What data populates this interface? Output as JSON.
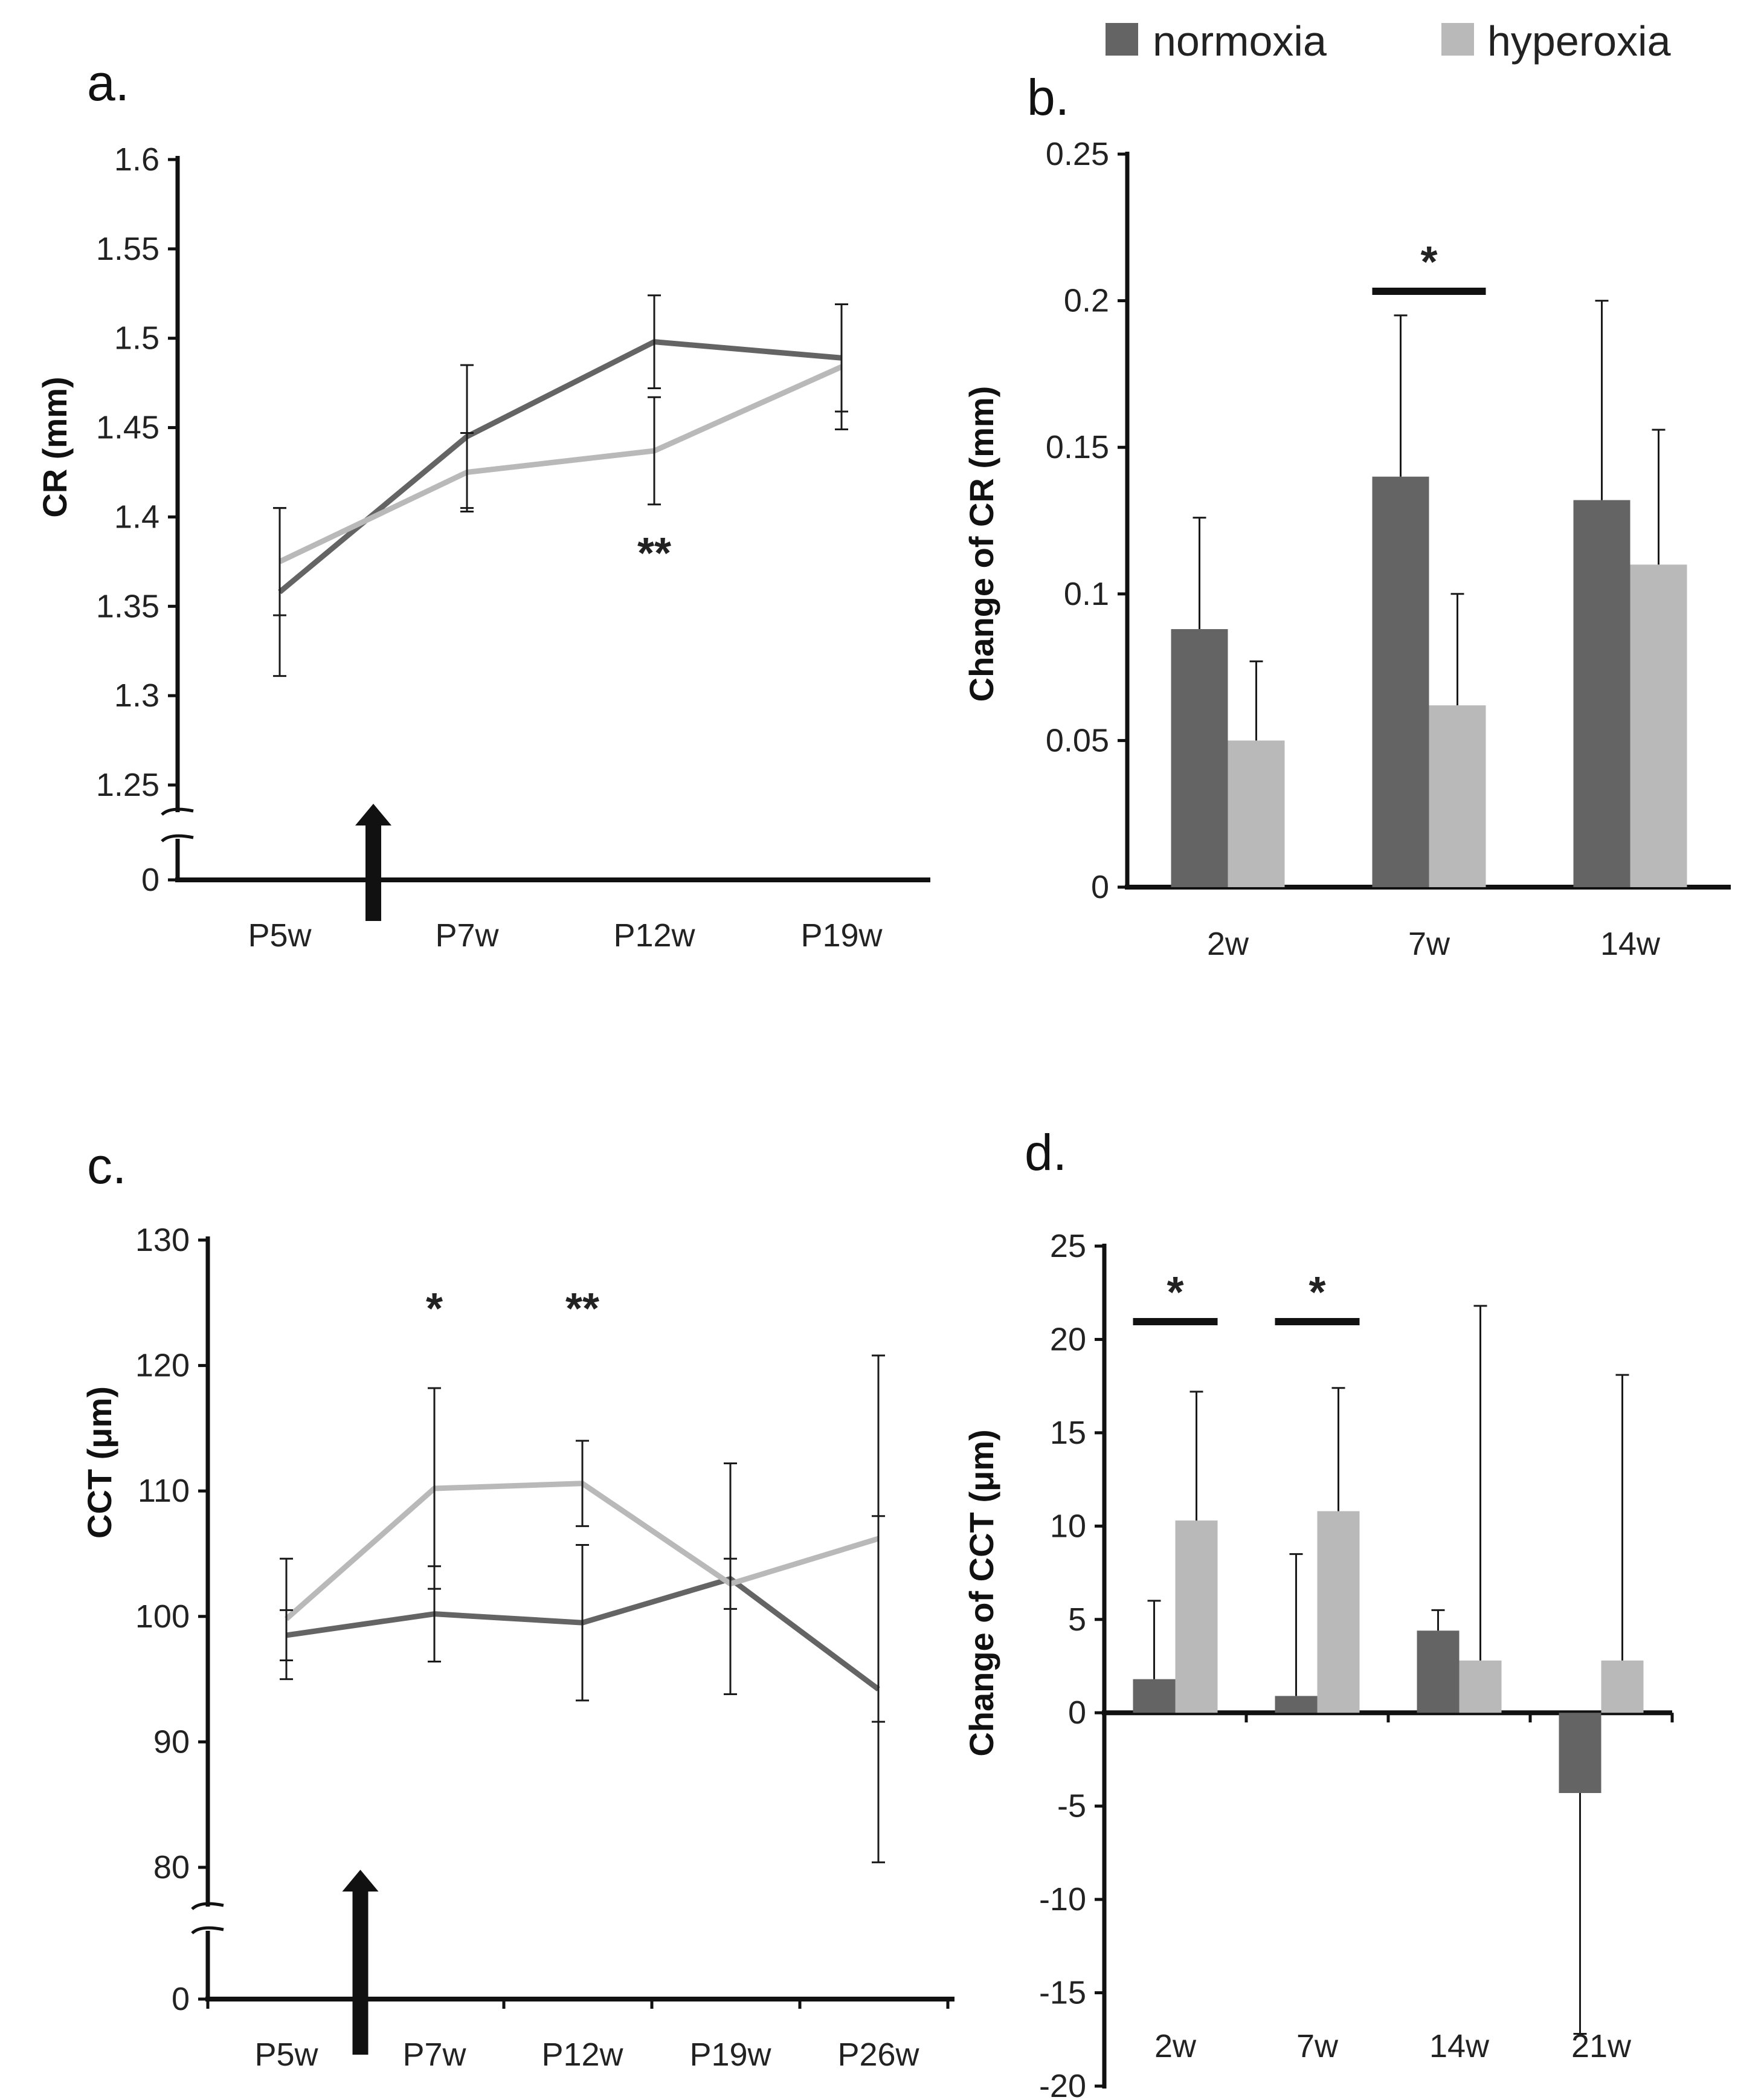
{
  "colors": {
    "normoxia": "#646464",
    "hyperoxia": "#b9b9b9",
    "axis": "#111111",
    "error": "#1a1a1a"
  },
  "legend": [
    {
      "name": "normoxia",
      "color": "#646464"
    },
    {
      "name": "hyperoxia",
      "color": "#b9b9b9"
    }
  ],
  "chart_data": [
    {
      "id": "a",
      "panel_label": "a.",
      "type": "line",
      "ylabel": "CR (mm)",
      "categories": [
        "P5w",
        "P7w",
        "P12w",
        "P19w"
      ],
      "yticks": [
        "0",
        "1.25",
        "1.3",
        "1.35",
        "1.4",
        "1.45",
        "1.5",
        "1.55",
        "1.6"
      ],
      "ylim": [
        1.25,
        1.6
      ],
      "axis_break": true,
      "series": [
        {
          "name": "normoxia",
          "values": [
            1.358,
            1.445,
            1.498,
            1.489
          ],
          "errors": [
            0.047,
            0.04,
            0.026,
            0.03
          ]
        },
        {
          "name": "hyperoxia",
          "values": [
            1.375,
            1.425,
            1.437,
            1.484
          ],
          "errors": [
            0.03,
            0.022,
            0.03,
            0.035
          ]
        }
      ],
      "annotations": [
        {
          "text": "**",
          "category": "P12w"
        }
      ],
      "arrow_after_category": "P5w"
    },
    {
      "id": "b",
      "panel_label": "b.",
      "type": "bar",
      "ylabel": "Change of CR (mm)",
      "categories": [
        "2w",
        "7w",
        "14w"
      ],
      "yticks": [
        "0",
        "0.05",
        "0.1",
        "0.15",
        "0.2",
        "0.25"
      ],
      "ylim": [
        0,
        0.25
      ],
      "series": [
        {
          "name": "normoxia",
          "values": [
            0.088,
            0.14,
            0.132
          ],
          "errors": [
            0.038,
            0.055,
            0.068
          ]
        },
        {
          "name": "hyperoxia",
          "values": [
            0.05,
            0.062,
            0.11
          ],
          "errors": [
            0.027,
            0.038,
            0.046
          ]
        }
      ],
      "annotations": [
        {
          "text": "*",
          "category": "7w"
        }
      ]
    },
    {
      "id": "c",
      "panel_label": "c.",
      "type": "line",
      "ylabel": "CCT (μm)",
      "categories": [
        "P5w",
        "P7w",
        "P12w",
        "P19w",
        "P26w"
      ],
      "yticks": [
        "0",
        "80",
        "90",
        "100",
        "110",
        "120",
        "130"
      ],
      "ylim": [
        80,
        130
      ],
      "axis_break": true,
      "series": [
        {
          "name": "normoxia",
          "values": [
            98.5,
            100.2,
            99.5,
            103.0,
            94.2
          ],
          "errors": [
            2.0,
            3.8,
            6.2,
            9.2,
            13.8
          ]
        },
        {
          "name": "hyperoxia",
          "values": [
            99.8,
            110.2,
            110.6,
            102.6,
            106.2
          ],
          "errors": [
            4.8,
            8.0,
            3.4,
            2.0,
            14.6
          ]
        }
      ],
      "annotations": [
        {
          "text": "*",
          "category": "P7w"
        },
        {
          "text": "**",
          "category": "P12w"
        }
      ],
      "arrow_after_category": "P5w"
    },
    {
      "id": "d",
      "panel_label": "d.",
      "type": "bar",
      "ylabel": "Change of CCT (μm)",
      "categories": [
        "2w",
        "7w",
        "14w",
        "21w"
      ],
      "yticks": [
        "-20",
        "-15",
        "-10",
        "-5",
        "0",
        "5",
        "10",
        "15",
        "20",
        "25"
      ],
      "ylim": [
        -20,
        25
      ],
      "series": [
        {
          "name": "normoxia",
          "values": [
            1.8,
            0.9,
            4.4,
            -4.3
          ],
          "errors": [
            4.2,
            7.6,
            1.1,
            12.9
          ]
        },
        {
          "name": "hyperoxia",
          "values": [
            10.3,
            10.8,
            2.8,
            2.8
          ],
          "errors": [
            6.9,
            6.6,
            19.0,
            15.3
          ]
        }
      ],
      "annotations": [
        {
          "text": "*",
          "category": "2w"
        },
        {
          "text": "*",
          "category": "7w"
        }
      ]
    }
  ]
}
